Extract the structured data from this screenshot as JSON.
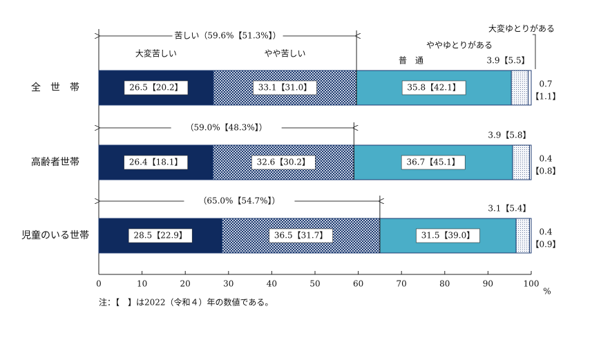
{
  "chart_data": {
    "type": "stacked-bar",
    "orientation": "horizontal",
    "categories": [
      "全　世　帯",
      "高齢者世帯",
      "児童のいる世帯"
    ],
    "series": [
      {
        "name": "大変苦しい",
        "color": "#0f2a5e",
        "pattern": "solid",
        "values": [
          26.5,
          26.4,
          28.5
        ],
        "value_labels": [
          "26.5【20.2】",
          "26.4【18.1】",
          "28.5【22.9】"
        ]
      },
      {
        "name": "やや苦しい",
        "color": "#3a5a8c",
        "pattern": "checker",
        "values": [
          33.1,
          32.6,
          36.5
        ],
        "value_labels": [
          "33.1【31.0】",
          "32.6【30.2】",
          "36.5【31.7】"
        ]
      },
      {
        "name": "普　通",
        "color": "#4aaec8",
        "pattern": "solid",
        "values": [
          35.8,
          36.7,
          31.5
        ],
        "value_labels": [
          "35.8【42.1】",
          "36.7【45.1】",
          "31.5【39.0】"
        ]
      },
      {
        "name": "ややゆとりがある",
        "color": "#9aa8c0",
        "pattern": "dots",
        "values": [
          3.9,
          3.9,
          3.1
        ],
        "value_labels": [
          "3.9【5.5】",
          "3.9【5.8】",
          "3.1【5.4】"
        ]
      },
      {
        "name": "大変ゆとりがある",
        "color": "#ffffff",
        "pattern": "solid",
        "values": [
          0.7,
          0.4,
          0.4
        ],
        "value_labels": [
          [
            "0.7",
            "【1.1】"
          ],
          [
            "0.4",
            "【0.8】"
          ],
          [
            "0.4",
            "【0.9】"
          ]
        ]
      }
    ],
    "annotations": [
      {
        "value": 59.6,
        "label": "苦しい（59.6%【51.3%】）"
      },
      {
        "value": 59.0,
        "label": "（59.0%【48.3%】）"
      },
      {
        "value": 65.0,
        "label": "（65.0%【54.7%】）"
      }
    ],
    "xlim": [
      0,
      100
    ],
    "xticks": [
      0,
      10,
      20,
      30,
      40,
      50,
      60,
      70,
      80,
      90,
      100
    ],
    "x_label": "%",
    "note": "注：【　】は2022（令和４）年の数値である。"
  }
}
